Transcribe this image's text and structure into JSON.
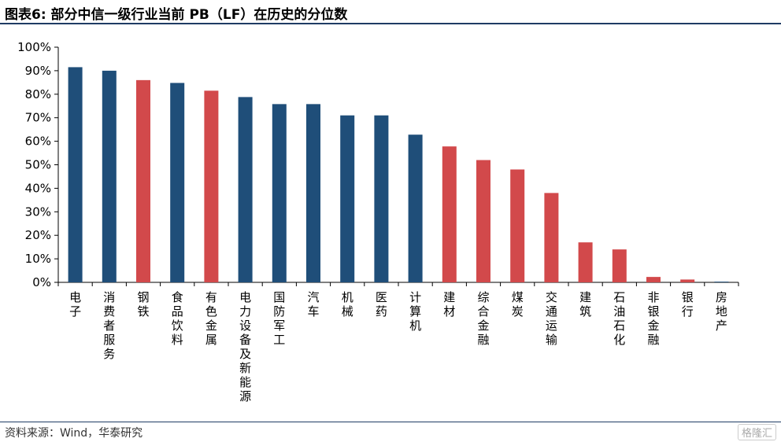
{
  "header": {
    "title": "图表6:  部分中信一级行业当前 PB（LF）在历史的分位数"
  },
  "footer": {
    "source": "资料来源：Wind，华泰研究",
    "watermark": "格隆汇"
  },
  "colors": {
    "blue": "#1f4e79",
    "red": "#d2494b",
    "axis": "#000000",
    "rule": "#1f3c64"
  },
  "chart_data": {
    "type": "bar",
    "categories": [
      "电子",
      "消费者服务",
      "钢铁",
      "食品饮料",
      "有色金属",
      "电力设备及新能源",
      "国防军工",
      "汽车",
      "机械",
      "医药",
      "计算机",
      "建材",
      "综合金融",
      "煤炭",
      "交通运输",
      "建筑",
      "石油石化",
      "非银金融",
      "银行",
      "房地产"
    ],
    "values": [
      91.5,
      90,
      86,
      84.8,
      81.5,
      78.8,
      75.8,
      75.8,
      71,
      71,
      62.8,
      57.8,
      52,
      48,
      38,
      17,
      14,
      2.3,
      1.2,
      0.3
    ],
    "bar_colors": [
      "blue",
      "blue",
      "red",
      "blue",
      "red",
      "blue",
      "blue",
      "blue",
      "blue",
      "blue",
      "blue",
      "red",
      "red",
      "red",
      "red",
      "red",
      "red",
      "red",
      "red",
      "blue"
    ],
    "ylim": [
      0,
      100
    ],
    "yticks": [
      0,
      10,
      20,
      30,
      40,
      50,
      60,
      70,
      80,
      90,
      100
    ],
    "ytick_labels": [
      "0%",
      "10%",
      "20%",
      "30%",
      "40%",
      "50%",
      "60%",
      "70%",
      "80%",
      "90%",
      "100%"
    ],
    "grid": false,
    "legend": "none"
  }
}
